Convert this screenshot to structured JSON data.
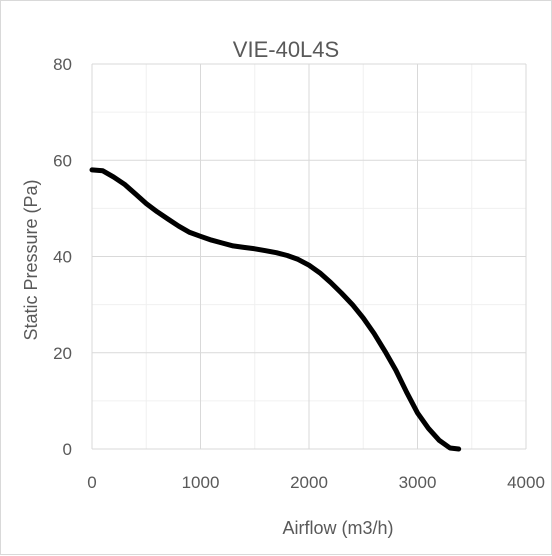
{
  "chart_data": {
    "type": "line",
    "title": "VIE-40L4S",
    "xlabel": "Airflow (m3/h)",
    "ylabel": "Static Pressure (Pa)",
    "xlim": [
      0,
      4000
    ],
    "ylim": [
      0,
      80
    ],
    "x_ticks": [
      "0",
      "1000",
      "2000",
      "3000",
      "4000"
    ],
    "y_ticks": [
      "0",
      "20",
      "40",
      "60",
      "80"
    ],
    "grid": true,
    "legend": "none",
    "series": [
      {
        "color": "#000000",
        "x": [
          0,
          100,
          200,
          300,
          400,
          500,
          600,
          700,
          800,
          900,
          1000,
          1100,
          1200,
          1300,
          1400,
          1500,
          1600,
          1700,
          1800,
          1900,
          2000,
          2100,
          2200,
          2300,
          2400,
          2500,
          2600,
          2700,
          2800,
          2900,
          3000,
          3100,
          3200,
          3300,
          3380
        ],
        "y": [
          58,
          57.8,
          56.5,
          55,
          53,
          51,
          49.3,
          47.8,
          46.3,
          45,
          44.2,
          43.4,
          42.8,
          42.2,
          41.9,
          41.6,
          41.2,
          40.8,
          40.2,
          39.4,
          38.2,
          36.6,
          34.6,
          32.4,
          30,
          27.2,
          24,
          20.3,
          16.4,
          11.8,
          7.5,
          4.3,
          1.8,
          0.2,
          0
        ]
      }
    ]
  }
}
